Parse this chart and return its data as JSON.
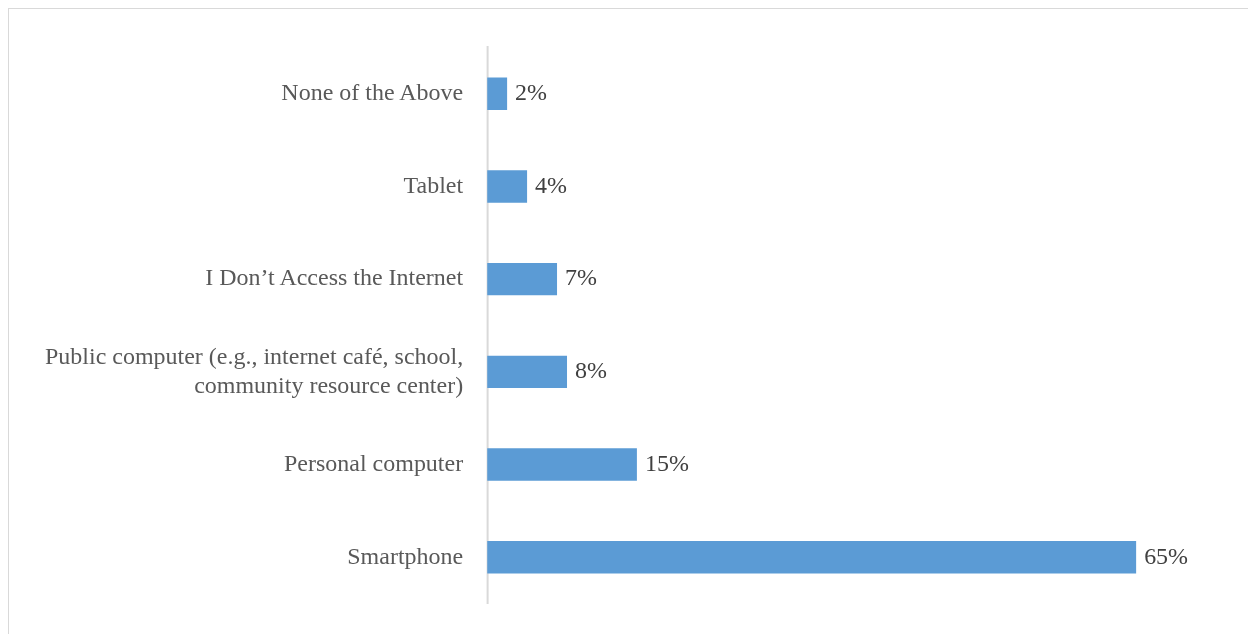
{
  "chart_data": {
    "type": "bar",
    "orientation": "horizontal",
    "categories": [
      "None of the Above",
      "Tablet",
      "I Don’t Access the Internet",
      "Public computer (e.g., internet café, school, community resource center)",
      "Personal computer",
      "Smartphone"
    ],
    "values": [
      2,
      4,
      7,
      8,
      15,
      65
    ],
    "value_labels": [
      "2%",
      "4%",
      "7%",
      "8%",
      "15%",
      "65%"
    ],
    "color": "#5b9bd5",
    "tick_labels": "y",
    "grid": false,
    "legend": false
  }
}
